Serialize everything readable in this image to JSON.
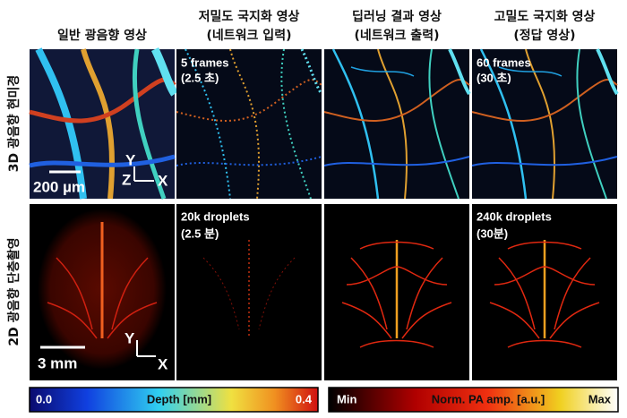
{
  "column_headers": [
    [
      "일반 광음향 영상"
    ],
    [
      "저밀도 국지화 영상",
      "(네트워크 입력)"
    ],
    [
      "딥러닝 결과 영상",
      "(네트워크 출력)"
    ],
    [
      "고밀도 국지화 영상",
      "(정답 영상)"
    ]
  ],
  "row_labels": [
    "3D 광음향 현미경",
    "2D 광음향 단층촬영"
  ],
  "panel_texts": {
    "top_conventional": {
      "scale_bar": "200 µm",
      "axis_y": "Y",
      "axis_z": "Z",
      "axis_x": "X"
    },
    "top_input": [
      "5 frames",
      "(2.5 초)"
    ],
    "top_truth": [
      "60 frames",
      "(30 초)"
    ],
    "bottom_conventional": {
      "scale_bar": "3 mm",
      "axis_y": "Y",
      "axis_x": "X"
    },
    "bottom_input": [
      "20k droplets",
      "(2.5 분)"
    ],
    "bottom_truth": [
      "240k droplets",
      "(30분)"
    ]
  },
  "colorbars": [
    {
      "min_label": "0.0",
      "title": "Depth [mm]",
      "max_label": "0.4"
    },
    {
      "min_label": "Min",
      "title": "Norm. PA amp. [a.u.]",
      "max_label": "Max"
    }
  ]
}
